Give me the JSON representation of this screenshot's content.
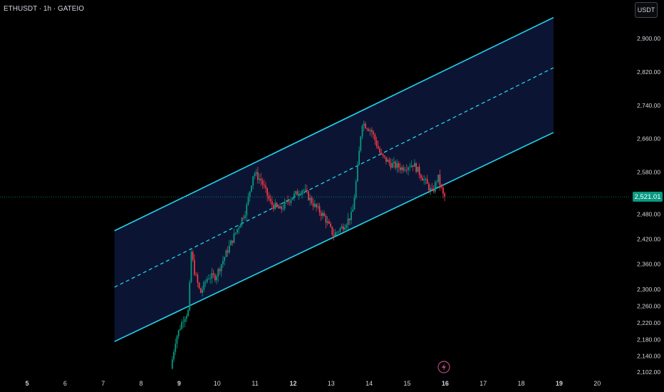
{
  "header": {
    "title": "ETHUSDT · 1h · GATEIO",
    "currency_button": "USDT"
  },
  "chart_data": {
    "type": "candlestick",
    "symbol": "ETHUSDT",
    "interval": "1h",
    "exchange": "GATEIO",
    "ylim": [
      2090,
      2960
    ],
    "xlim": [
      4.75,
      20.8
    ],
    "y_ticks": [
      "2,900.00",
      "2,820.00",
      "2,740.00",
      "2,660.00",
      "2,580.00",
      "2,480.00",
      "2,420.00",
      "2,360.00",
      "2,300.00",
      "2,260.00",
      "2,220.00",
      "2,180.00",
      "2,140.00",
      "2,102.00"
    ],
    "x_ticks": [
      {
        "label": "5",
        "day": 5,
        "bold": true
      },
      {
        "label": "6",
        "day": 6
      },
      {
        "label": "7",
        "day": 7
      },
      {
        "label": "8",
        "day": 8
      },
      {
        "label": "9",
        "day": 9,
        "bold": true
      },
      {
        "label": "10",
        "day": 10
      },
      {
        "label": "11",
        "day": 11
      },
      {
        "label": "12",
        "day": 12,
        "bold": true
      },
      {
        "label": "13",
        "day": 13
      },
      {
        "label": "14",
        "day": 14
      },
      {
        "label": "15",
        "day": 15
      },
      {
        "label": "16",
        "day": 16,
        "bold": true
      },
      {
        "label": "17",
        "day": 17
      },
      {
        "label": "18",
        "day": 18
      },
      {
        "label": "19",
        "day": 19,
        "bold": true
      },
      {
        "label": "20",
        "day": 20
      }
    ],
    "last_price": 2521.01,
    "last_price_label": "2,521.01",
    "channel": {
      "start_day": 7.3,
      "end_day": 18.85,
      "upper": [
        2440,
        2950
      ],
      "middle": [
        2305,
        2830
      ],
      "lower": [
        2175,
        2675
      ]
    },
    "price_path": [
      [
        8.82,
        2110
      ],
      [
        8.95,
        2180
      ],
      [
        9.15,
        2230
      ],
      [
        9.3,
        2250
      ],
      [
        9.35,
        2395
      ],
      [
        9.45,
        2340
      ],
      [
        9.6,
        2290
      ],
      [
        9.8,
        2330
      ],
      [
        10.0,
        2330
      ],
      [
        10.25,
        2380
      ],
      [
        10.55,
        2440
      ],
      [
        10.8,
        2490
      ],
      [
        11.0,
        2580
      ],
      [
        11.2,
        2560
      ],
      [
        11.45,
        2505
      ],
      [
        11.7,
        2490
      ],
      [
        12.0,
        2520
      ],
      [
        12.3,
        2540
      ],
      [
        12.6,
        2500
      ],
      [
        12.85,
        2475
      ],
      [
        13.1,
        2430
      ],
      [
        13.35,
        2450
      ],
      [
        13.6,
        2480
      ],
      [
        13.75,
        2600
      ],
      [
        13.85,
        2700
      ],
      [
        14.1,
        2680
      ],
      [
        14.35,
        2620
      ],
      [
        14.6,
        2600
      ],
      [
        14.9,
        2590
      ],
      [
        15.2,
        2600
      ],
      [
        15.5,
        2560
      ],
      [
        15.7,
        2530
      ],
      [
        15.85,
        2570
      ],
      [
        16.0,
        2521
      ]
    ],
    "colors": {
      "up": "#089981",
      "down": "#f23645",
      "channel_line": "#22d3ee",
      "channel_fill": "#0b1533",
      "last_price_line": "#089981"
    }
  }
}
